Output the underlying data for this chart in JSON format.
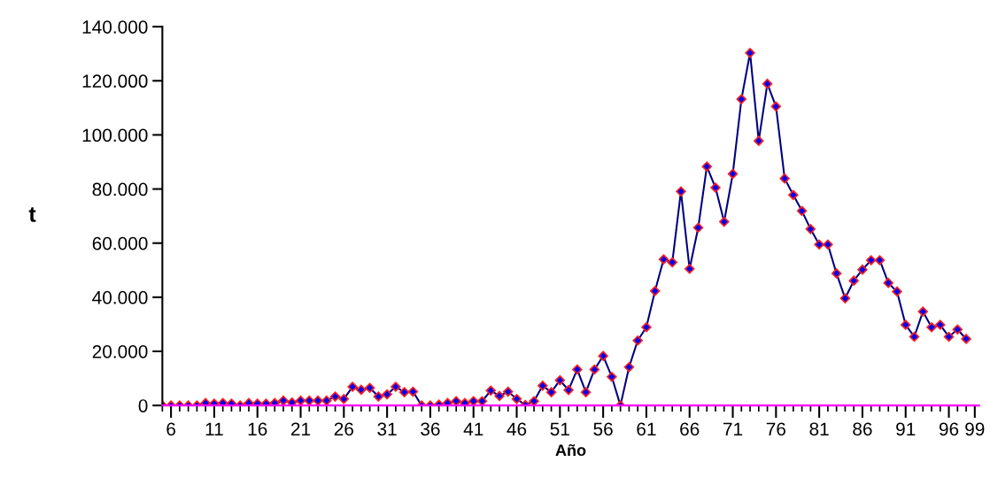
{
  "chart_data": {
    "type": "line",
    "xlabel": "Año",
    "ylabel": "t",
    "x": [
      5,
      6,
      7,
      8,
      9,
      10,
      11,
      12,
      13,
      14,
      15,
      16,
      17,
      18,
      19,
      20,
      21,
      22,
      23,
      24,
      25,
      26,
      27,
      28,
      29,
      30,
      31,
      32,
      33,
      34,
      35,
      36,
      37,
      38,
      39,
      40,
      41,
      42,
      43,
      44,
      45,
      46,
      47,
      48,
      49,
      50,
      51,
      52,
      53,
      54,
      55,
      56,
      57,
      58,
      59,
      60,
      61,
      62,
      63,
      64,
      65,
      66,
      67,
      68,
      69,
      70,
      71,
      72,
      73,
      74,
      75,
      76,
      77,
      78,
      79,
      80,
      81,
      82,
      83,
      84,
      85,
      86,
      87,
      88,
      89,
      90,
      91,
      92,
      93,
      94,
      95,
      96,
      97,
      98
    ],
    "series": [
      {
        "color": "#0000ee",
        "values": [
          0,
          0,
          0,
          0,
          0,
          900,
          700,
          900,
          700,
          0,
          900,
          700,
          700,
          900,
          1800,
          1100,
          1800,
          1800,
          1800,
          1800,
          3300,
          2400,
          6900,
          5800,
          6500,
          3300,
          4100,
          6900,
          4900,
          5100,
          0,
          0,
          300,
          900,
          1600,
          900,
          1600,
          1600,
          5500,
          3500,
          5100,
          2400,
          200,
          1600,
          7300,
          4900,
          9300,
          5700,
          13300,
          4900,
          13300,
          18300,
          10600,
          0,
          14200,
          24000,
          28900,
          42300,
          54000,
          52900,
          79100,
          50500,
          65700,
          88300,
          80500,
          67900,
          85600,
          113200,
          130300,
          97800,
          118900,
          110500,
          83900,
          77800,
          71900,
          65200,
          59500,
          59500,
          48800,
          39600,
          46100,
          50200,
          53700,
          53700,
          45300,
          42100,
          29800,
          25400,
          34700,
          28900,
          29800,
          25400,
          28100,
          24600
        ]
      }
    ],
    "xlim": [
      5,
      99.5
    ],
    "xticks": [
      {
        "value": 5,
        "label": null
      },
      6,
      {
        "value": 7,
        "label": null
      },
      {
        "value": 8,
        "label": null
      },
      {
        "value": 9,
        "label": null
      },
      {
        "value": 10,
        "label": null
      },
      11,
      {
        "value": 12,
        "label": null
      },
      {
        "value": 13,
        "label": null
      },
      {
        "value": 14,
        "label": null
      },
      {
        "value": 15,
        "label": null
      },
      16,
      {
        "value": 17,
        "label": null
      },
      {
        "value": 18,
        "label": null
      },
      {
        "value": 19,
        "label": null
      },
      {
        "value": 20,
        "label": null
      },
      21,
      {
        "value": 22,
        "label": null
      },
      {
        "value": 23,
        "label": null
      },
      {
        "value": 24,
        "label": null
      },
      {
        "value": 25,
        "label": null
      },
      26,
      {
        "value": 27,
        "label": null
      },
      {
        "value": 28,
        "label": null
      },
      {
        "value": 29,
        "label": null
      },
      {
        "value": 30,
        "label": null
      },
      31,
      {
        "value": 32,
        "label": null
      },
      {
        "value": 33,
        "label": null
      },
      {
        "value": 34,
        "label": null
      },
      {
        "value": 35,
        "label": null
      },
      36,
      {
        "value": 37,
        "label": null
      },
      {
        "value": 38,
        "label": null
      },
      {
        "value": 39,
        "label": null
      },
      {
        "value": 40,
        "label": null
      },
      41,
      {
        "value": 42,
        "label": null
      },
      {
        "value": 43,
        "label": null
      },
      {
        "value": 44,
        "label": null
      },
      {
        "value": 45,
        "label": null
      },
      46,
      {
        "value": 47,
        "label": null
      },
      {
        "value": 48,
        "label": null
      },
      {
        "value": 49,
        "label": null
      },
      {
        "value": 50,
        "label": null
      },
      51,
      {
        "value": 52,
        "label": null
      },
      {
        "value": 53,
        "label": null
      },
      {
        "value": 54,
        "label": null
      },
      {
        "value": 55,
        "label": null
      },
      56,
      {
        "value": 57,
        "label": null
      },
      {
        "value": 58,
        "label": null
      },
      {
        "value": 59,
        "label": null
      },
      {
        "value": 60,
        "label": null
      },
      61,
      {
        "value": 62,
        "label": null
      },
      {
        "value": 63,
        "label": null
      },
      {
        "value": 64,
        "label": null
      },
      {
        "value": 65,
        "label": null
      },
      66,
      {
        "value": 67,
        "label": null
      },
      {
        "value": 68,
        "label": null
      },
      {
        "value": 69,
        "label": null
      },
      {
        "value": 70,
        "label": null
      },
      71,
      {
        "value": 72,
        "label": null
      },
      {
        "value": 73,
        "label": null
      },
      {
        "value": 74,
        "label": null
      },
      {
        "value": 75,
        "label": null
      },
      76,
      {
        "value": 77,
        "label": null
      },
      {
        "value": 78,
        "label": null
      },
      {
        "value": 79,
        "label": null
      },
      {
        "value": 80,
        "label": null
      },
      81,
      {
        "value": 82,
        "label": null
      },
      {
        "value": 83,
        "label": null
      },
      {
        "value": 84,
        "label": null
      },
      {
        "value": 85,
        "label": null
      },
      86,
      {
        "value": 87,
        "label": null
      },
      {
        "value": 88,
        "label": null
      },
      {
        "value": 89,
        "label": null
      },
      {
        "value": 90,
        "label": null
      },
      91,
      {
        "value": 92,
        "label": null
      },
      {
        "value": 93,
        "label": null
      },
      {
        "value": 94,
        "label": null
      },
      {
        "value": 95,
        "label": null
      },
      96,
      {
        "value": 97,
        "label": null
      },
      {
        "value": 98,
        "label": null
      },
      99
    ],
    "ylim": [
      0,
      140000
    ],
    "yticks": [
      0,
      {
        "value": 20000,
        "label": "20.000"
      },
      {
        "value": 40000,
        "label": "40.000"
      },
      {
        "value": 60000,
        "label": "60.000"
      },
      {
        "value": 80000,
        "label": "80.000"
      },
      {
        "value": 100000,
        "label": "100.000"
      },
      {
        "value": 120000,
        "label": "120.000"
      },
      {
        "value": 140000,
        "label": "140.000"
      }
    ],
    "grid": false,
    "legend": false,
    "marker": "diamond",
    "line_style": "solid"
  }
}
